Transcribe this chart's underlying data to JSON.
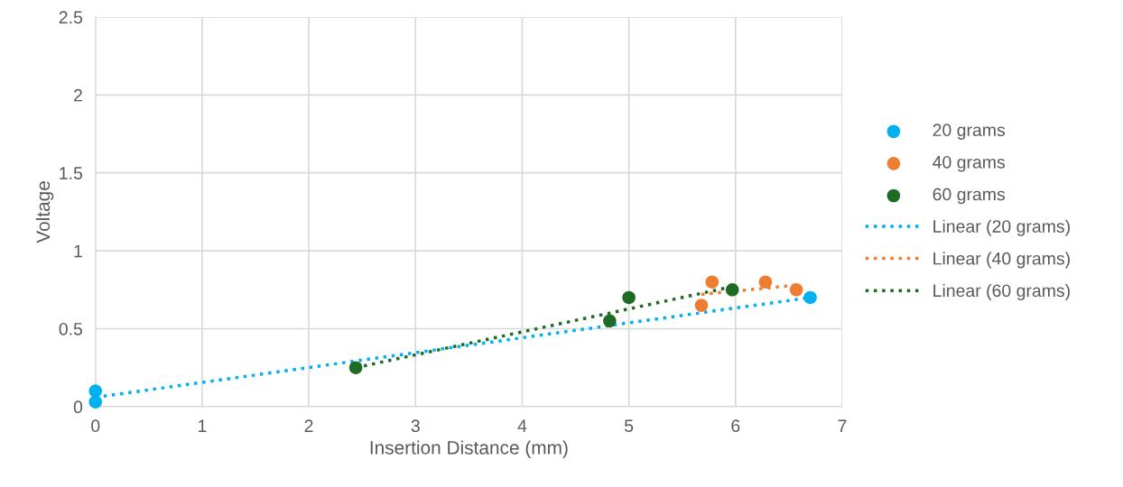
{
  "chart_data": {
    "type": "scatter",
    "xlabel": "Insertion Distance (mm)",
    "ylabel": "Voltage",
    "xlim": [
      0,
      7
    ],
    "xticks": [
      0,
      1,
      2,
      3,
      4,
      5,
      6,
      7
    ],
    "ylim": [
      0,
      2.5
    ],
    "yticks": [
      0,
      {
        "value": 0.5,
        "label": "0.5"
      },
      1,
      {
        "value": 1.5,
        "label": "1.5"
      },
      2,
      {
        "value": 2.5,
        "label": "2.5"
      }
    ],
    "grid": true,
    "legend": "right",
    "marker": "circle",
    "series": [
      {
        "name": "20 grams",
        "color": "#00b0f0",
        "x": [
          0,
          0,
          6.7
        ],
        "values": [
          0.1,
          0.03,
          0.7
        ]
      },
      {
        "name": "40 grams",
        "color": "#ed7d31",
        "x": [
          5.68,
          5.78,
          6.28,
          6.57
        ],
        "values": [
          0.65,
          0.8,
          0.8,
          0.75
        ]
      },
      {
        "name": "60 grams",
        "color": "#1e6b24",
        "x": [
          2.44,
          4.82,
          5.0,
          5.97
        ],
        "values": [
          0.25,
          0.55,
          0.7,
          0.75
        ]
      },
      {
        "name": "Linear (20 grams)",
        "type": "line",
        "line_style": "dotted",
        "marker": "none",
        "color": "#00b0f0",
        "x": [
          0,
          6.7
        ],
        "values": [
          0.06,
          0.7
        ]
      },
      {
        "name": "Linear (40 grams)",
        "type": "line",
        "line_style": "dotted",
        "marker": "none",
        "color": "#ed7d31",
        "x": [
          5.68,
          6.57
        ],
        "values": [
          0.72,
          0.78
        ]
      },
      {
        "name": "Linear (60 grams)",
        "type": "line",
        "line_style": "dotted",
        "marker": "none",
        "color": "#1e6b24",
        "x": [
          2.44,
          5.97
        ],
        "values": [
          0.25,
          0.77
        ]
      }
    ]
  }
}
